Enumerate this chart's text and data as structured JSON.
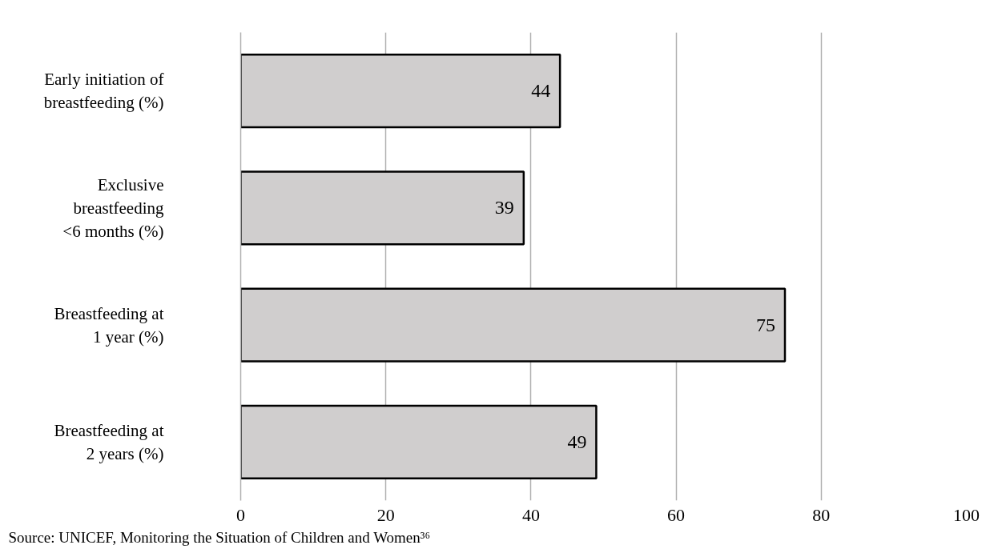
{
  "chart_data": {
    "type": "bar",
    "orientation": "horizontal",
    "categories": [
      "Early initiation of\nbreastfeeding (%)",
      "Exclusive\nbreastfeeding\n<6 months (%)",
      "Breastfeeding at\n1 year (%)",
      "Breastfeeding at\n2 years (%)"
    ],
    "values": [
      44,
      39,
      75,
      49
    ],
    "color": "#d0cece",
    "xlim": [
      0,
      100
    ],
    "xticks": [
      0,
      20,
      40,
      60,
      80,
      100
    ],
    "grid": "x",
    "data_labels": true,
    "annotations": [
      "Source: UNICEF, Monitoring the Situation of Children and Women³⁶"
    ]
  }
}
